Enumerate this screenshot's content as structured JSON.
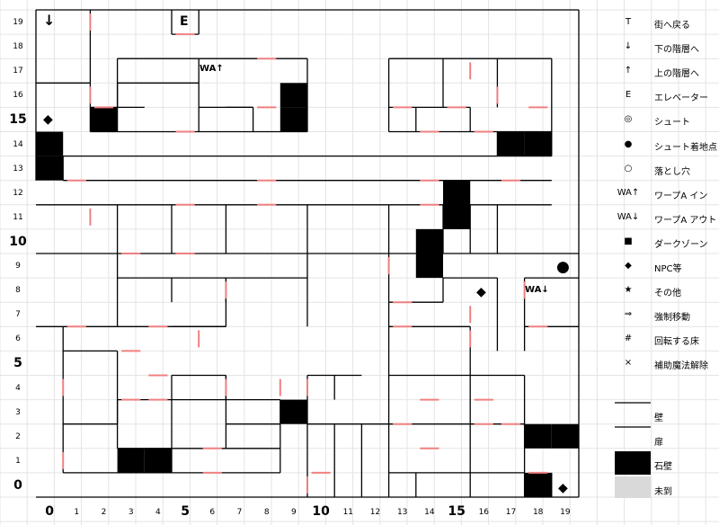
{
  "axes": {
    "y_labels": [
      "19",
      "18",
      "17",
      "16",
      "15",
      "14",
      "13",
      "12",
      "11",
      "10",
      "9",
      "8",
      "7",
      "6",
      "5",
      "4",
      "3",
      "2",
      "1",
      "0"
    ],
    "x_labels": [
      "0",
      "1",
      "2",
      "3",
      "4",
      "5",
      "6",
      "7",
      "8",
      "9",
      "10",
      "11",
      "12",
      "13",
      "14",
      "15",
      "16",
      "17",
      "18",
      "19"
    ],
    "major": [
      "0",
      "5",
      "10",
      "15"
    ]
  },
  "map_marks": {
    "stairs_down": "↓",
    "elevator": "E",
    "warp_in": "WA↑",
    "warp_out": "WA↓",
    "npc": "◆",
    "landing": "●"
  },
  "legend": [
    {
      "symbol": "T",
      "label": "街へ戻る"
    },
    {
      "symbol": "↓",
      "label": "下の階層へ"
    },
    {
      "symbol": "↑",
      "label": "上の階層へ"
    },
    {
      "symbol": "E",
      "label": "エレベーター"
    },
    {
      "symbol": "◎",
      "label": "シュート"
    },
    {
      "symbol": "●",
      "label": "シュート着地点"
    },
    {
      "symbol": "○",
      "label": "落とし穴"
    },
    {
      "symbol": "WA↑",
      "label": "ワープA イン"
    },
    {
      "symbol": "WA↓",
      "label": "ワープA アウト"
    },
    {
      "symbol": "■",
      "label": "ダークゾーン"
    },
    {
      "symbol": "◆",
      "label": "NPC等"
    },
    {
      "symbol": "★",
      "label": "その他"
    },
    {
      "symbol": "⇒",
      "label": "強制移動"
    },
    {
      "symbol": "#",
      "label": "回転する床"
    },
    {
      "symbol": "×",
      "label": "補助魔法解除"
    }
  ],
  "swatches": [
    {
      "label": "壁"
    },
    {
      "label": "扉"
    },
    {
      "label": "石壁"
    },
    {
      "label": "未到"
    }
  ],
  "colors": {
    "wall": "#000000",
    "door": "#f08080",
    "stone": "#000000",
    "unvisited": "#d9d9d9",
    "grid": "#e4e4e4"
  }
}
